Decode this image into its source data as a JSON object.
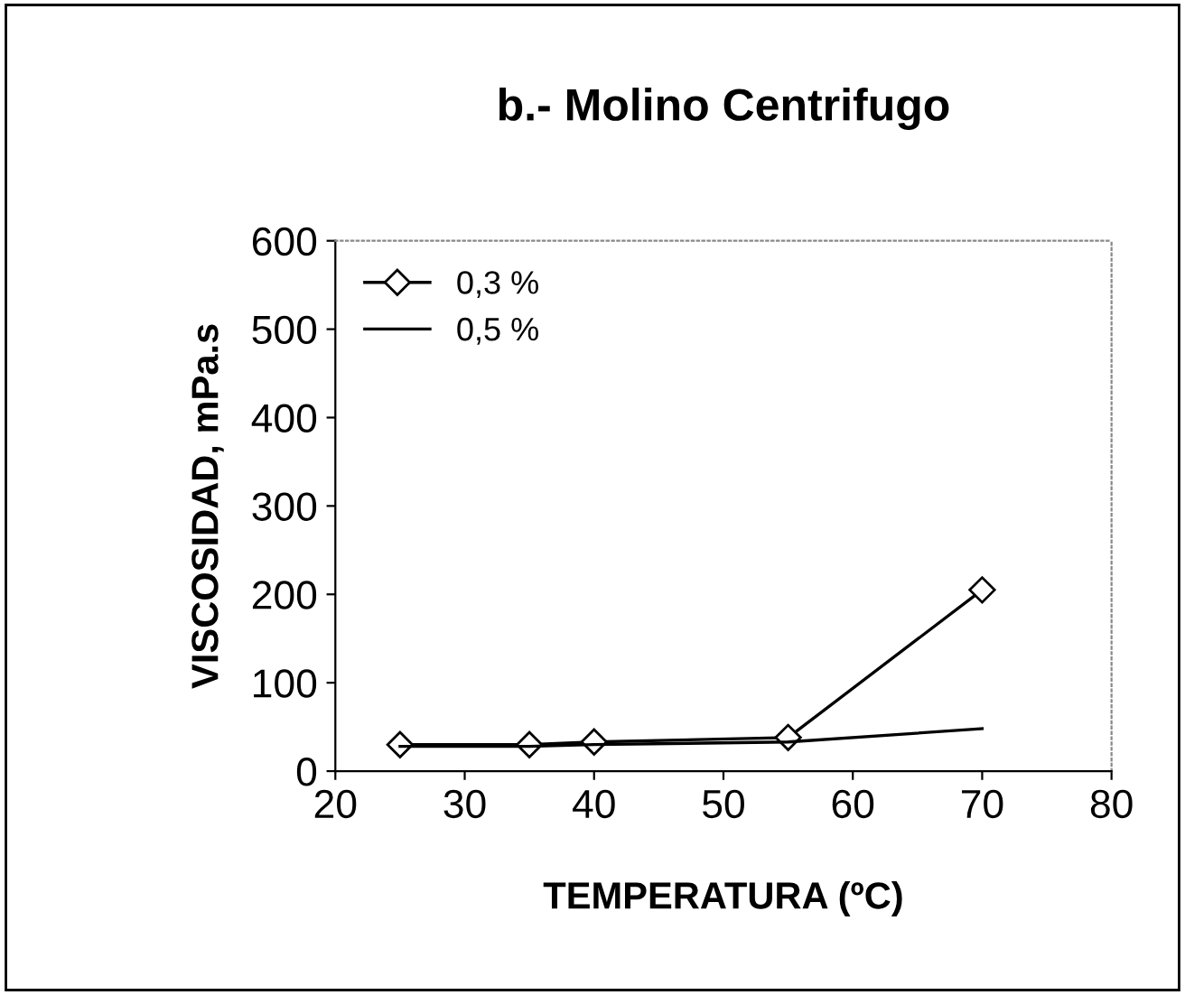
{
  "chart_data": {
    "type": "line",
    "title": "b.- Molino Centrifugo",
    "xlabel": "TEMPERATURA (ºC)",
    "ylabel": "VISCOSIDAD, mPa.s",
    "x": [
      25,
      35,
      40,
      55,
      70
    ],
    "series": [
      {
        "name": "0,3 %",
        "color": "#000000",
        "values": [
          30,
          30,
          33,
          38,
          205
        ],
        "marker": "diamond"
      },
      {
        "name": "0,5 %",
        "color": "#000000",
        "values": [
          28,
          28,
          30,
          33,
          48
        ],
        "marker": "none"
      }
    ],
    "xlim": [
      20,
      80
    ],
    "xticks": [
      20,
      30,
      40,
      50,
      60,
      70,
      80
    ],
    "ylim": [
      0,
      600
    ],
    "yticks": [
      0,
      100,
      200,
      300,
      400,
      500,
      600
    ],
    "grid": false,
    "legend": "top left",
    "line_style": "solid"
  }
}
